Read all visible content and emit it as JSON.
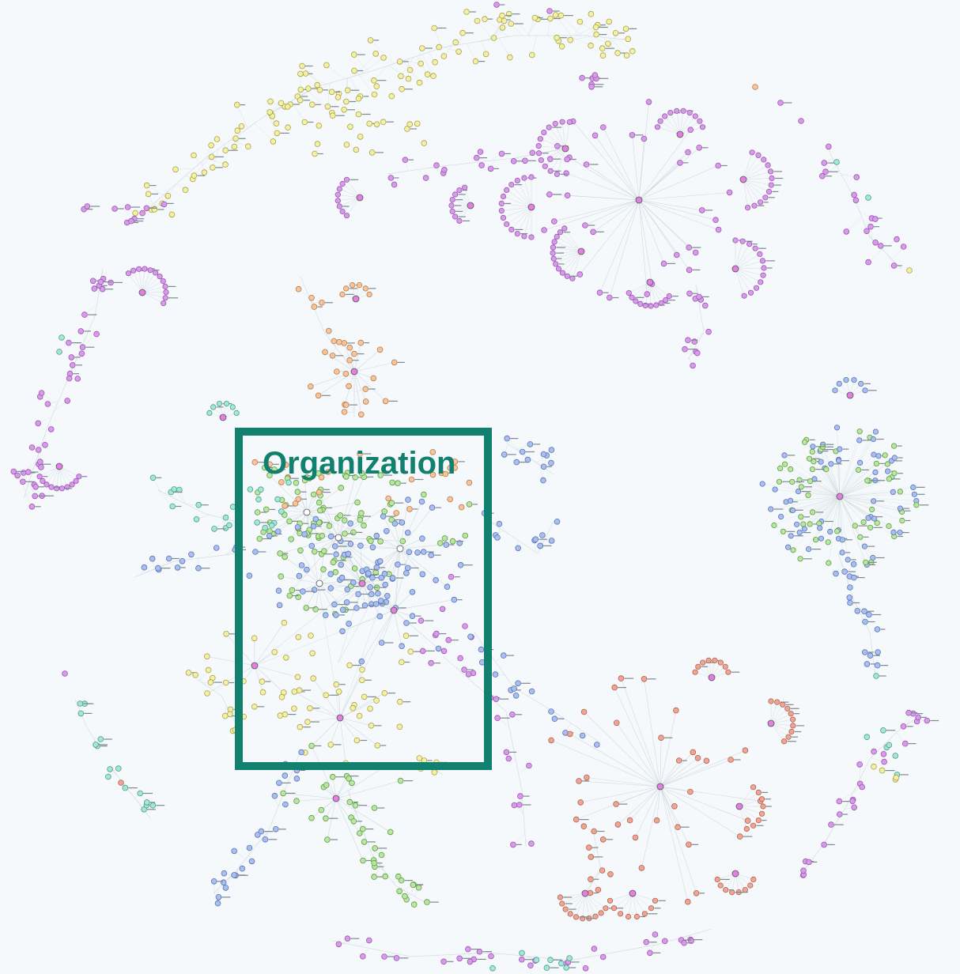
{
  "highlight": {
    "label": "Organization",
    "color": "#11806f"
  },
  "node_colors": {
    "purple": "#d79be8",
    "purple_stroke": "#9b56b5",
    "yellow": "#f4f0a6",
    "yellow_stroke": "#a9a24a",
    "blue": "#a9bff0",
    "blue_stroke": "#5a73b5",
    "green": "#b9e6a1",
    "green_stroke": "#5f9a43",
    "orange": "#f6c59e",
    "orange_stroke": "#b97b47",
    "salmon": "#f0a594",
    "salmon_stroke": "#b06350",
    "teal": "#a6e6d6",
    "teal_stroke": "#4b9d8a",
    "white": "#ffffff",
    "edge": "#c9d2d8",
    "hub": "#e27fe0",
    "background": "#f5f9fb"
  }
}
